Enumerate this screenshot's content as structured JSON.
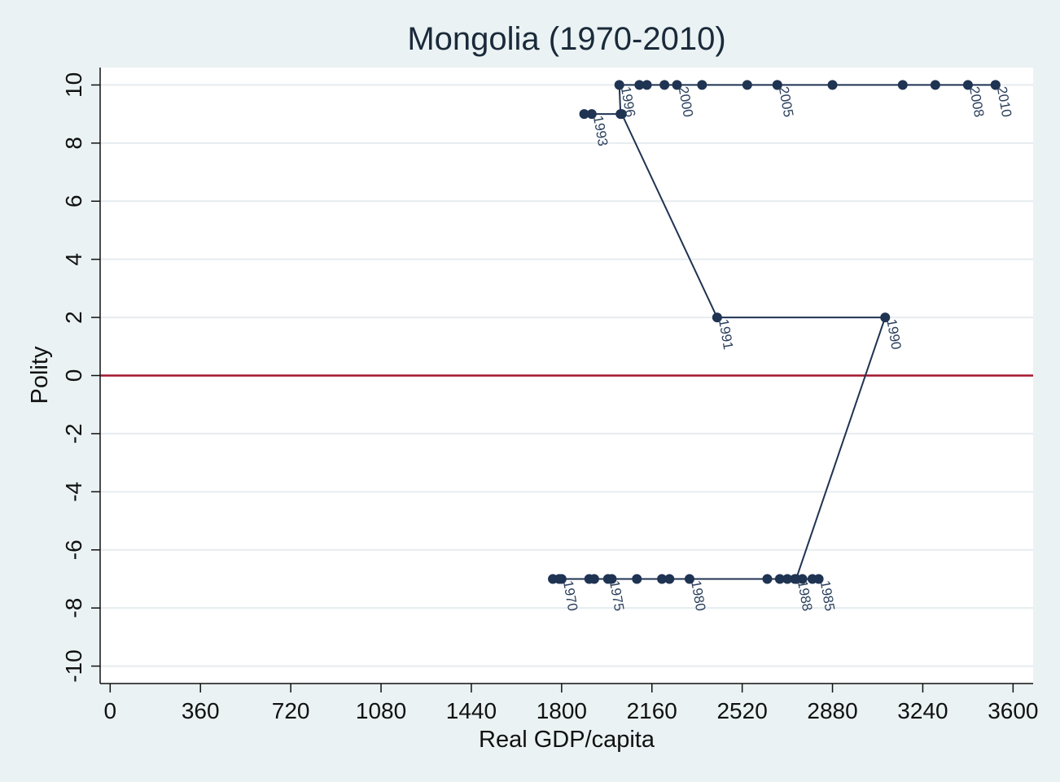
{
  "chart_data": {
    "type": "line",
    "title": "Mongolia (1970-2010)",
    "xlabel": "Real GDP/capita",
    "ylabel": "Polity",
    "xlim": [
      -40,
      3680
    ],
    "ylim": [
      -10.6,
      10.6
    ],
    "xticks": [
      0,
      360,
      720,
      1080,
      1440,
      1800,
      2160,
      2520,
      2880,
      3240,
      3600
    ],
    "yticks": [
      10,
      8,
      6,
      4,
      2,
      0,
      -2,
      -4,
      -6,
      -8,
      -10
    ],
    "grid": true,
    "legend": "none",
    "reference_line": {
      "y": 0,
      "color": "#a3172e"
    },
    "series_color": "#1f3352",
    "points": [
      {
        "year": 1970,
        "x": 1800,
        "y": -7,
        "label": "1970"
      },
      {
        "year": 1971,
        "x": 1765,
        "y": -7
      },
      {
        "year": 1972,
        "x": 1790,
        "y": -7
      },
      {
        "year": 1973,
        "x": 1910,
        "y": -7
      },
      {
        "year": 1974,
        "x": 1930,
        "y": -7
      },
      {
        "year": 1975,
        "x": 1985,
        "y": -7,
        "label": "1975"
      },
      {
        "year": 1976,
        "x": 2000,
        "y": -7
      },
      {
        "year": 1977,
        "x": 2100,
        "y": -7
      },
      {
        "year": 1978,
        "x": 2200,
        "y": -7
      },
      {
        "year": 1979,
        "x": 2230,
        "y": -7
      },
      {
        "year": 1980,
        "x": 2310,
        "y": -7,
        "label": "1980"
      },
      {
        "year": 1981,
        "x": 2620,
        "y": -7
      },
      {
        "year": 1982,
        "x": 2670,
        "y": -7
      },
      {
        "year": 1983,
        "x": 2700,
        "y": -7
      },
      {
        "year": 1984,
        "x": 2800,
        "y": -7
      },
      {
        "year": 1985,
        "x": 2825,
        "y": -7,
        "label": "1985"
      },
      {
        "year": 1986,
        "x": 2760,
        "y": -7
      },
      {
        "year": 1987,
        "x": 2730,
        "y": -7
      },
      {
        "year": 1988,
        "x": 2735,
        "y": -7,
        "label": "1988"
      },
      {
        "year": 1989,
        "x": 2735,
        "y": -7
      },
      {
        "year": 1990,
        "x": 3090,
        "y": 2,
        "label": "1990"
      },
      {
        "year": 1991,
        "x": 2420,
        "y": 2,
        "label": "1991"
      },
      {
        "year": 1992,
        "x": 2040,
        "y": 9
      },
      {
        "year": 1993,
        "x": 1920,
        "y": 9,
        "label": "1993"
      },
      {
        "year": 1994,
        "x": 1890,
        "y": 9
      },
      {
        "year": 1995,
        "x": 2035,
        "y": 9
      },
      {
        "year": 1996,
        "x": 2030,
        "y": 10,
        "label": "1996"
      },
      {
        "year": 1997,
        "x": 2110,
        "y": 10
      },
      {
        "year": 1998,
        "x": 2140,
        "y": 10
      },
      {
        "year": 1999,
        "x": 2210,
        "y": 10
      },
      {
        "year": 2000,
        "x": 2260,
        "y": 10,
        "label": "2000"
      },
      {
        "year": 2001,
        "x": 2360,
        "y": 10
      },
      {
        "year": 2002,
        "x": 2540,
        "y": 10
      },
      {
        "year": 2003,
        "x": 2660,
        "y": 10
      },
      {
        "year": 2004,
        "x": 2880,
        "y": 10
      },
      {
        "year": 2005,
        "x": 2660,
        "y": 10,
        "label": "2005"
      },
      {
        "year": 2006,
        "x": 3160,
        "y": 10
      },
      {
        "year": 2007,
        "x": 3290,
        "y": 10
      },
      {
        "year": 2008,
        "x": 3420,
        "y": 10,
        "label": "2008"
      },
      {
        "year": 2009,
        "x": 3530,
        "y": 10
      },
      {
        "year": 2010,
        "x": 3530,
        "y": 10,
        "label": "2010"
      }
    ]
  }
}
